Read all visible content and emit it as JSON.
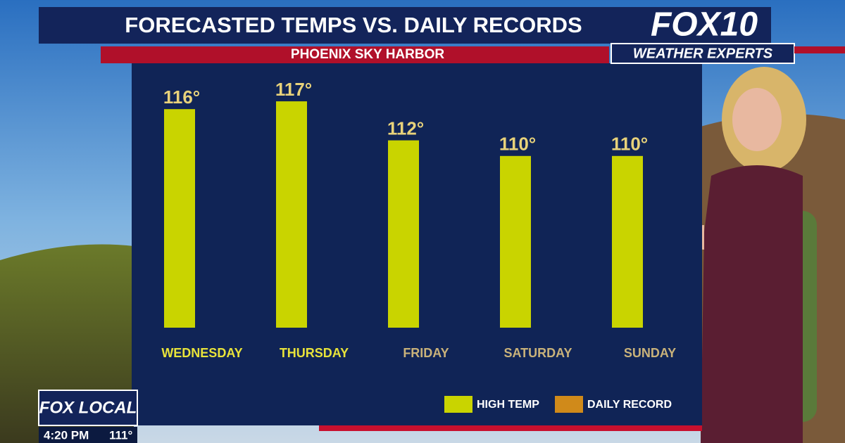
{
  "chart_data": {
    "type": "bar",
    "title": "FORECASTED TEMPS VS. DAILY RECORDS",
    "subtitle": "PHOENIX SKY HARBOR",
    "categories": [
      "WEDNESDAY",
      "THURSDAY",
      "FRIDAY",
      "SATURDAY",
      "SUNDAY"
    ],
    "category_colors": [
      "#e8e33a",
      "#e8e33a",
      "#c9b27a",
      "#c9b27a",
      "#c9b27a"
    ],
    "series": [
      {
        "name": "HIGH TEMP",
        "color": "#c9d400",
        "values": [
          116,
          117,
          112,
          110,
          110
        ],
        "value_labels": [
          "116°",
          "117°",
          "112°",
          "110°",
          "110°"
        ]
      },
      {
        "name": "DAILY RECORD",
        "color": "#d08a1a",
        "values": [
          null,
          null,
          null,
          null,
          null
        ]
      }
    ],
    "ylim": [
      88,
      118
    ],
    "legend": "bottom-right"
  },
  "broadcast": {
    "logo": "FOX10",
    "tagline": "WEATHER EXPERTS",
    "station": "FOX LOCAL",
    "time": "4:20 PM",
    "temp": "111°"
  }
}
